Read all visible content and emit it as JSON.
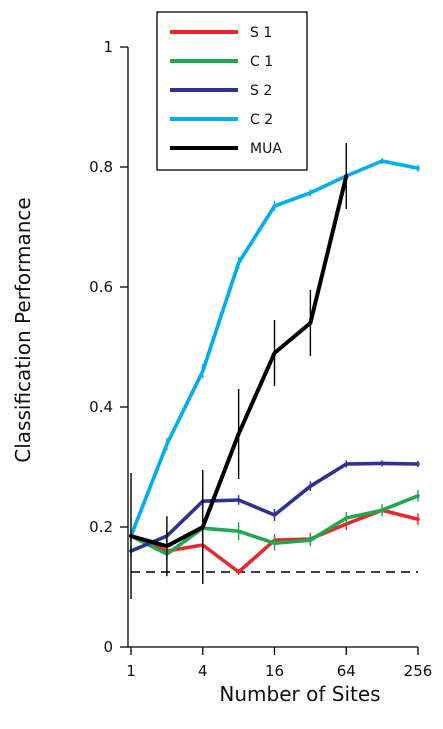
{
  "chart_data": {
    "type": "line",
    "xlabel": "Number of Sites",
    "ylabel": "Classification Performance",
    "x_scale": "log2",
    "xlim": [
      1,
      256
    ],
    "ylim": [
      0,
      1
    ],
    "x_ticks": [
      1,
      4,
      16,
      64,
      256
    ],
    "x_tick_labels": [
      "1",
      "4",
      "16",
      "64",
      "256"
    ],
    "y_ticks": [
      0,
      0.2,
      0.4,
      0.6,
      0.8,
      1
    ],
    "y_tick_labels": [
      "0",
      "0.2",
      "0.4",
      "0.6",
      "0.8",
      "1"
    ],
    "chance_level": 0.125,
    "legend_position": "top-left",
    "series": [
      {
        "name": "S 1",
        "color": "#e8262b",
        "x": [
          1,
          2,
          4,
          8,
          16,
          32,
          64,
          128,
          256
        ],
        "y": [
          0.185,
          0.16,
          0.17,
          0.125,
          0.178,
          0.18,
          0.205,
          0.228,
          0.213
        ],
        "err": [
          0.01,
          0.012,
          0.02,
          0.005,
          0.01,
          0.01,
          0.01,
          0.008,
          0.01
        ]
      },
      {
        "name": "C 1",
        "color": "#1fa84f",
        "x": [
          1,
          2,
          4,
          8,
          16,
          32,
          64,
          128,
          256
        ],
        "y": [
          0.185,
          0.155,
          0.198,
          0.193,
          0.173,
          0.178,
          0.215,
          0.228,
          0.252
        ],
        "err": [
          0.01,
          0.012,
          0.015,
          0.015,
          0.012,
          0.01,
          0.01,
          0.01,
          0.01
        ]
      },
      {
        "name": "S 2",
        "color": "#2e3192",
        "x": [
          1,
          2,
          4,
          8,
          16,
          32,
          64,
          128,
          256
        ],
        "y": [
          0.16,
          0.185,
          0.243,
          0.245,
          0.22,
          0.268,
          0.305,
          0.306,
          0.305
        ],
        "err": [
          0.01,
          0.01,
          0.012,
          0.008,
          0.01,
          0.008,
          0.006,
          0.005,
          0.005
        ]
      },
      {
        "name": "C 2",
        "color": "#00aeef",
        "x": [
          1,
          2,
          4,
          8,
          16,
          32,
          64,
          128,
          256
        ],
        "y": [
          0.185,
          0.338,
          0.46,
          0.64,
          0.735,
          0.757,
          0.785,
          0.81,
          0.798
        ],
        "err": [
          0.01,
          0.01,
          0.012,
          0.01,
          0.008,
          0.006,
          0.006,
          0.005,
          0.006
        ]
      },
      {
        "name": "MUA",
        "color": "#000000",
        "x": [
          1,
          2,
          4,
          8,
          16,
          32,
          64
        ],
        "y": [
          0.185,
          0.168,
          0.2,
          0.355,
          0.49,
          0.54,
          0.785
        ],
        "err": [
          0.105,
          0.05,
          0.095,
          0.075,
          0.055,
          0.055,
          0.055
        ]
      }
    ]
  }
}
